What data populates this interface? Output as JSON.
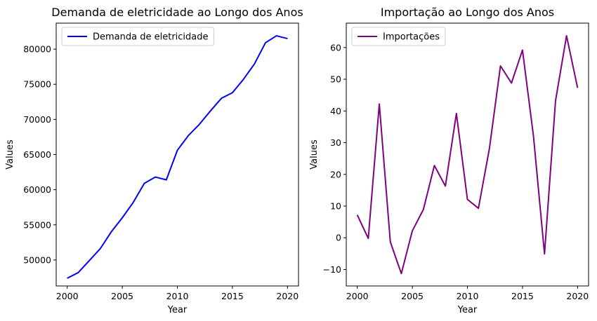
{
  "chart_data": [
    {
      "type": "line",
      "title": "Demanda de eletricidade ao Longo dos Anos",
      "xlabel": "Year",
      "ylabel": "Values",
      "xlim": [
        1999,
        2021
      ],
      "ylim": [
        46300,
        83700
      ],
      "xticks": [
        2000,
        2005,
        2010,
        2015,
        2020
      ],
      "yticks": [
        50000,
        55000,
        60000,
        65000,
        70000,
        75000,
        80000
      ],
      "legend_position": "upper-left",
      "grid": false,
      "x": [
        2000,
        2001,
        2002,
        2003,
        2004,
        2005,
        2006,
        2007,
        2008,
        2009,
        2010,
        2011,
        2012,
        2013,
        2014,
        2015,
        2016,
        2017,
        2018,
        2019,
        2020
      ],
      "series": [
        {
          "name": "Demanda de eletricidade",
          "color": "#0000ff",
          "values": [
            47400,
            48200,
            49900,
            51600,
            54000,
            56000,
            58200,
            60900,
            61800,
            61400,
            65600,
            67700,
            69300,
            71200,
            73000,
            73800,
            75700,
            77900,
            80900,
            81900,
            81500
          ]
        }
      ]
    },
    {
      "type": "line",
      "title": "Importação ao Longo dos Anos",
      "xlabel": "Year",
      "ylabel": "Values",
      "xlim": [
        1999,
        2021
      ],
      "ylim": [
        -15.2,
        67.7
      ],
      "xticks": [
        2000,
        2005,
        2010,
        2015,
        2020
      ],
      "yticks": [
        -10,
        0,
        10,
        20,
        30,
        40,
        50,
        60
      ],
      "legend_position": "upper-left",
      "grid": false,
      "x": [
        2000,
        2001,
        2002,
        2003,
        2004,
        2005,
        2006,
        2007,
        2008,
        2009,
        2010,
        2011,
        2012,
        2013,
        2014,
        2015,
        2016,
        2017,
        2018,
        2019,
        2020
      ],
      "series": [
        {
          "name": "Importações",
          "color": "#800080",
          "values": [
            7.2,
            -0.2,
            42.2,
            -1.3,
            -11.3,
            2.2,
            8.9,
            22.8,
            16.3,
            39.2,
            12.1,
            9.3,
            28.2,
            54.2,
            48.8,
            59.2,
            32.0,
            -5.1,
            43.2,
            63.7,
            47.3
          ]
        }
      ]
    }
  ]
}
